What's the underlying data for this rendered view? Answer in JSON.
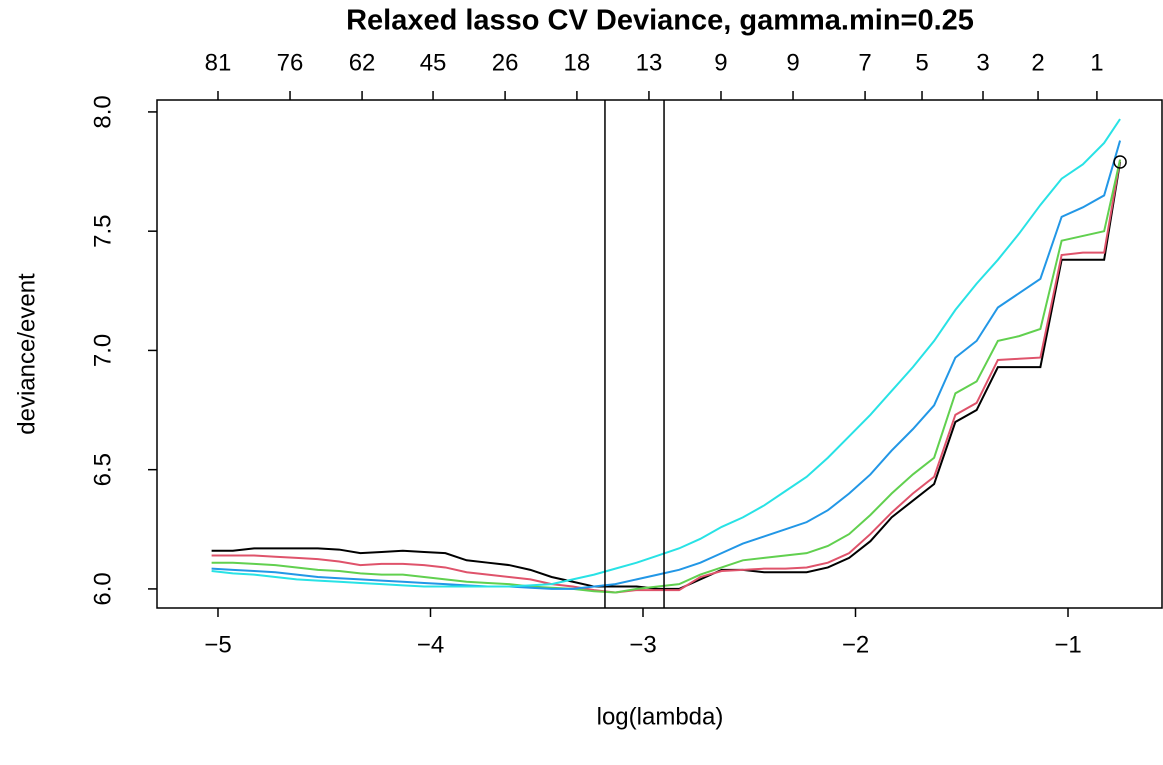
{
  "chart_data": {
    "type": "line",
    "title": "Relaxed lasso CV Deviance, gamma.min=0.25",
    "x_label": "log(lambda)",
    "y_label": "deviance/event",
    "xlim": [
      -5.287,
      -0.553
    ],
    "ylim": [
      5.92,
      8.05
    ],
    "xticks": [
      {
        "value": -5,
        "label": "−5"
      },
      {
        "value": -4,
        "label": "−4"
      },
      {
        "value": -3,
        "label": "−3"
      },
      {
        "value": -2,
        "label": "−2"
      },
      {
        "value": -1,
        "label": "−1"
      }
    ],
    "yticks": [
      {
        "value": 6,
        "label": "6.0"
      },
      6.5,
      {
        "value": 7,
        "label": "7.0"
      },
      7.5,
      {
        "value": 8,
        "label": "8.0"
      }
    ],
    "top_ticks": [
      {
        "value": -5,
        "label": "81"
      },
      {
        "value": -4.661,
        "label": "76"
      },
      {
        "value": -4.322,
        "label": "62"
      },
      {
        "value": -3.988,
        "label": "45"
      },
      {
        "value": -3.649,
        "label": "26"
      },
      {
        "value": -3.311,
        "label": "18"
      },
      {
        "value": -2.972,
        "label": "13"
      },
      {
        "value": -2.633,
        "label": "9"
      },
      {
        "value": -2.294,
        "label": "9"
      },
      {
        "value": -1.955,
        "label": "7"
      },
      {
        "value": -1.687,
        "label": "5"
      },
      {
        "value": -1.4,
        "label": "3"
      },
      {
        "value": -1.141,
        "label": "2"
      },
      {
        "value": -0.864,
        "label": "1"
      }
    ],
    "vlines": [
      -3.179,
      -2.901
    ],
    "marker_point": {
      "x": -0.755,
      "y": 7.79
    },
    "x": [
      -5.03,
      -4.93,
      -4.83,
      -4.73,
      -4.63,
      -4.53,
      -4.43,
      -4.33,
      -4.23,
      -4.13,
      -4.03,
      -3.93,
      -3.83,
      -3.73,
      -3.63,
      -3.53,
      -3.43,
      -3.33,
      -3.23,
      -3.13,
      -3.03,
      -2.93,
      -2.83,
      -2.73,
      -2.63,
      -2.53,
      -2.43,
      -2.33,
      -2.23,
      -2.13,
      -2.03,
      -1.93,
      -1.83,
      -1.73,
      -1.63,
      -1.53,
      -1.43,
      -1.33,
      -1.23,
      -1.13,
      -1.03,
      -0.93,
      -0.83,
      -0.755
    ],
    "series": [
      {
        "color": "#000000",
        "values": [
          6.16,
          6.16,
          6.17,
          6.17,
          6.17,
          6.17,
          6.165,
          6.15,
          6.155,
          6.16,
          6.155,
          6.15,
          6.12,
          6.11,
          6.1,
          6.08,
          6.05,
          6.03,
          6.01,
          6.01,
          6.01,
          6.0,
          6.0,
          6.04,
          6.08,
          6.08,
          6.07,
          6.07,
          6.07,
          6.09,
          6.13,
          6.2,
          6.3,
          6.37,
          6.44,
          6.7,
          6.75,
          6.93,
          6.93,
          6.93,
          7.38,
          7.38,
          7.38,
          7.79
        ]
      },
      {
        "color": "#DF536B",
        "values": [
          6.14,
          6.14,
          6.14,
          6.135,
          6.13,
          6.125,
          6.115,
          6.1,
          6.105,
          6.105,
          6.1,
          6.09,
          6.07,
          6.06,
          6.05,
          6.04,
          6.02,
          6.01,
          5.995,
          5.985,
          5.995,
          5.995,
          5.995,
          6.05,
          6.075,
          6.08,
          6.085,
          6.085,
          6.09,
          6.11,
          6.15,
          6.23,
          6.32,
          6.4,
          6.47,
          6.73,
          6.78,
          6.96,
          6.965,
          6.97,
          7.4,
          7.41,
          7.41,
          7.8
        ]
      },
      {
        "color": "#61D04F",
        "values": [
          6.11,
          6.11,
          6.105,
          6.1,
          6.09,
          6.08,
          6.075,
          6.065,
          6.06,
          6.06,
          6.05,
          6.04,
          6.03,
          6.025,
          6.02,
          6.01,
          6.005,
          6.0,
          5.99,
          5.985,
          6.0,
          6.01,
          6.02,
          6.06,
          6.09,
          6.12,
          6.13,
          6.14,
          6.15,
          6.18,
          6.23,
          6.31,
          6.4,
          6.48,
          6.55,
          6.82,
          6.87,
          7.04,
          7.06,
          7.09,
          7.46,
          7.48,
          7.5,
          7.8
        ]
      },
      {
        "color": "#2297E6",
        "values": [
          6.085,
          6.08,
          6.075,
          6.07,
          6.06,
          6.05,
          6.045,
          6.04,
          6.035,
          6.03,
          6.025,
          6.02,
          6.015,
          6.01,
          6.01,
          6.005,
          6.0,
          6.0,
          6.01,
          6.02,
          6.04,
          6.06,
          6.08,
          6.11,
          6.15,
          6.19,
          6.22,
          6.25,
          6.28,
          6.33,
          6.4,
          6.48,
          6.58,
          6.67,
          6.77,
          6.97,
          7.04,
          7.18,
          7.24,
          7.3,
          7.56,
          7.6,
          7.65,
          7.88
        ]
      },
      {
        "color": "#28E2E5",
        "values": [
          6.075,
          6.065,
          6.06,
          6.05,
          6.04,
          6.035,
          6.03,
          6.025,
          6.02,
          6.015,
          6.01,
          6.01,
          6.01,
          6.01,
          6.01,
          6.015,
          6.02,
          6.04,
          6.06,
          6.085,
          6.11,
          6.14,
          6.17,
          6.21,
          6.26,
          6.3,
          6.35,
          6.41,
          6.47,
          6.55,
          6.64,
          6.73,
          6.83,
          6.93,
          7.04,
          7.17,
          7.28,
          7.38,
          7.49,
          7.61,
          7.72,
          7.78,
          7.87,
          7.97
        ]
      }
    ]
  }
}
